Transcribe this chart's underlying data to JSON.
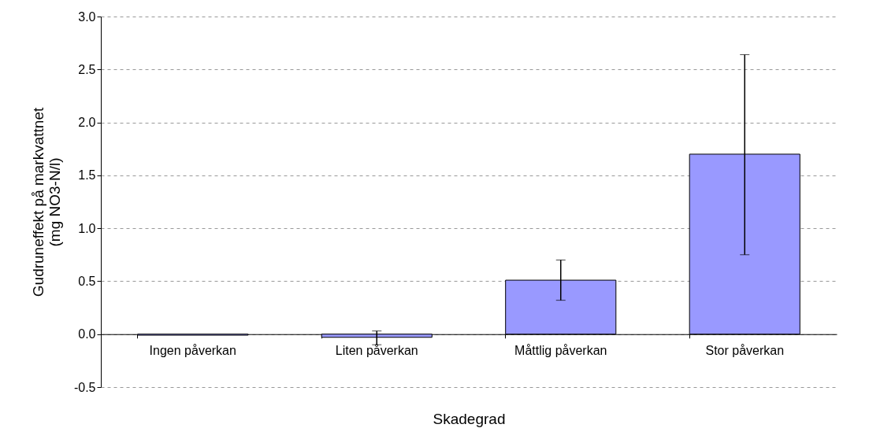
{
  "chart_data": {
    "type": "bar",
    "xlabel": "Skadegrad",
    "ylabel": "Gudruneffekt på markvattnet\n(mg NO3-N/l)",
    "categories": [
      "Ingen påverkan",
      "Liten påverkan",
      "Måttlig påverkan",
      "Stor påverkan"
    ],
    "values": [
      -0.01,
      -0.03,
      0.51,
      1.7
    ],
    "errors": [
      null,
      [
        -0.1,
        0.03
      ],
      [
        0.32,
        0.7
      ],
      [
        0.75,
        2.64
      ]
    ],
    "color": "#9999ff",
    "ylim": [
      -0.5,
      3.0
    ],
    "yticks": [
      -0.5,
      {
        "value": 0,
        "label": "0.0"
      },
      0.5,
      {
        "value": 1,
        "label": "1.0"
      },
      1.5,
      {
        "value": 2,
        "label": "2.0"
      },
      2.5,
      {
        "value": 3,
        "label": "3.0"
      }
    ],
    "grid": "y"
  }
}
